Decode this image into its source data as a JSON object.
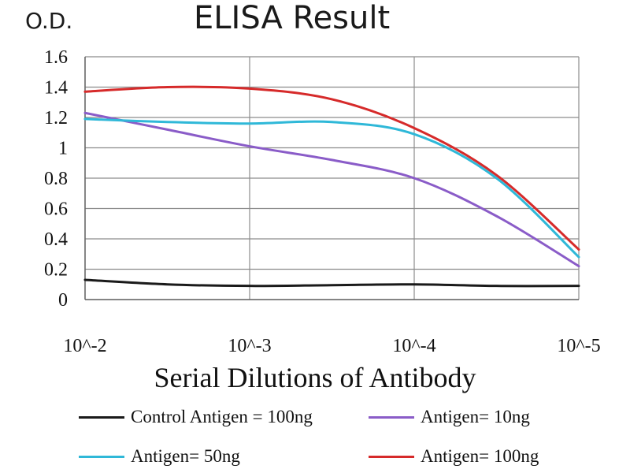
{
  "chart_data": {
    "type": "line",
    "title": "ELISA Result",
    "ylabel": "O.D.",
    "xlabel": "Serial Dilutions of Antibody",
    "x_ticks": [
      "10^-2",
      "10^-3",
      "10^-4",
      "10^-5"
    ],
    "y_ticks": [
      "0",
      "0.2",
      "0.4",
      "0.6",
      "0.8",
      "1",
      "1.2",
      "1.4",
      "1.6"
    ],
    "ylim": [
      0,
      1.6
    ],
    "x_scale": "log",
    "x": [
      0.01,
      0.003162,
      0.001,
      0.0003162,
      0.0001,
      3.162e-05,
      1e-05
    ],
    "grid": "on",
    "legend_position": "bottom",
    "series": [
      {
        "name": "Control Antigen = 100ng",
        "color": "#1a1a1a",
        "values": [
          0.13,
          0.1,
          0.09,
          0.095,
          0.1,
          0.09,
          0.09
        ]
      },
      {
        "name": "Antigen= 10ng",
        "color": "#8a5cc8",
        "values": [
          1.23,
          1.12,
          1.01,
          0.92,
          0.8,
          0.55,
          0.22
        ]
      },
      {
        "name": "Antigen= 50ng",
        "color": "#2fb8d8",
        "values": [
          1.19,
          1.17,
          1.16,
          1.17,
          1.09,
          0.8,
          0.28
        ]
      },
      {
        "name": "Antigen= 100ng",
        "color": "#d62a2a",
        "values": [
          1.37,
          1.4,
          1.39,
          1.32,
          1.13,
          0.82,
          0.33
        ]
      }
    ]
  }
}
